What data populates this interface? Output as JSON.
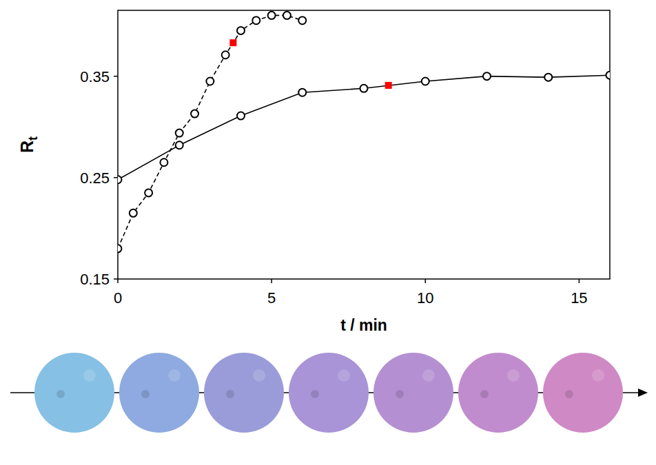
{
  "chart_data": {
    "type": "line",
    "x_label": "t / min",
    "y_label": "Rt",
    "xlim": [
      0,
      16
    ],
    "xticks": [
      0,
      5,
      10,
      15
    ],
    "ylim": [
      0.15,
      0.415
    ],
    "yticks": [
      0.15,
      0.25,
      0.35
    ],
    "grid": false,
    "series": [
      {
        "type": "line",
        "line_style": "dashed",
        "marker": "circle",
        "color": "#000000",
        "x": [
          0,
          0.5,
          1,
          1.5,
          2,
          2.5,
          3,
          3.5,
          4,
          4.5,
          5,
          5.5,
          6
        ],
        "values": [
          0.18,
          0.215,
          0.235,
          0.265,
          0.294,
          0.313,
          0.345,
          0.371,
          0.395,
          0.405,
          0.41,
          0.41,
          0.405
        ]
      },
      {
        "type": "line",
        "line_style": "solid",
        "marker": "circle",
        "color": "#000000",
        "x": [
          0,
          2,
          4,
          6,
          8,
          10,
          12,
          14,
          16
        ],
        "values": [
          0.248,
          0.282,
          0.311,
          0.334,
          0.338,
          0.345,
          0.35,
          0.349,
          0.351
        ]
      },
      {
        "type": "scatter",
        "marker": "square",
        "color": "#ff0000",
        "x": [
          3.75,
          8.8
        ],
        "values": [
          0.383,
          0.341
        ]
      }
    ]
  }
}
